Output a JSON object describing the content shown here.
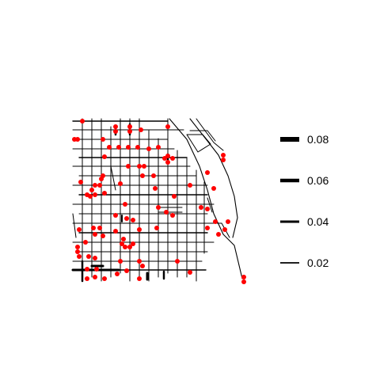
{
  "colors": {
    "background": "#ffffff",
    "road": "#000000",
    "point": "#ff0000"
  },
  "map": {
    "type": "point map over street network",
    "roads": "black line network",
    "points": "red markers at network locations"
  },
  "legend": {
    "title": "",
    "placement": "right",
    "entries": [
      {
        "label": "0.08",
        "value": 0.08
      },
      {
        "label": "0.06",
        "value": 0.06
      },
      {
        "label": "0.04",
        "value": 0.04
      },
      {
        "label": "0.02",
        "value": 0.02
      }
    ]
  }
}
